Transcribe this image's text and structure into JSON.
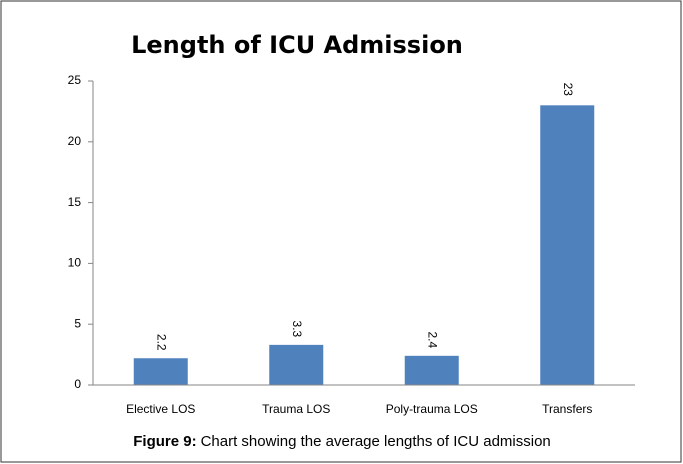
{
  "chart_data": {
    "type": "bar",
    "title": "Length of ICU Admission",
    "categories": [
      "Elective LOS",
      "Trauma LOS",
      "Poly-trauma LOS",
      "Transfers"
    ],
    "values": [
      2.2,
      3.3,
      2.4,
      23
    ],
    "color": "#4f81bd",
    "ylim": [
      0,
      25
    ],
    "yticks": [
      0,
      5,
      10,
      15,
      20,
      25
    ],
    "grid": false
  },
  "caption": {
    "label": "Figure 9:",
    "text": "Chart showing the average lengths of ICU admission"
  }
}
